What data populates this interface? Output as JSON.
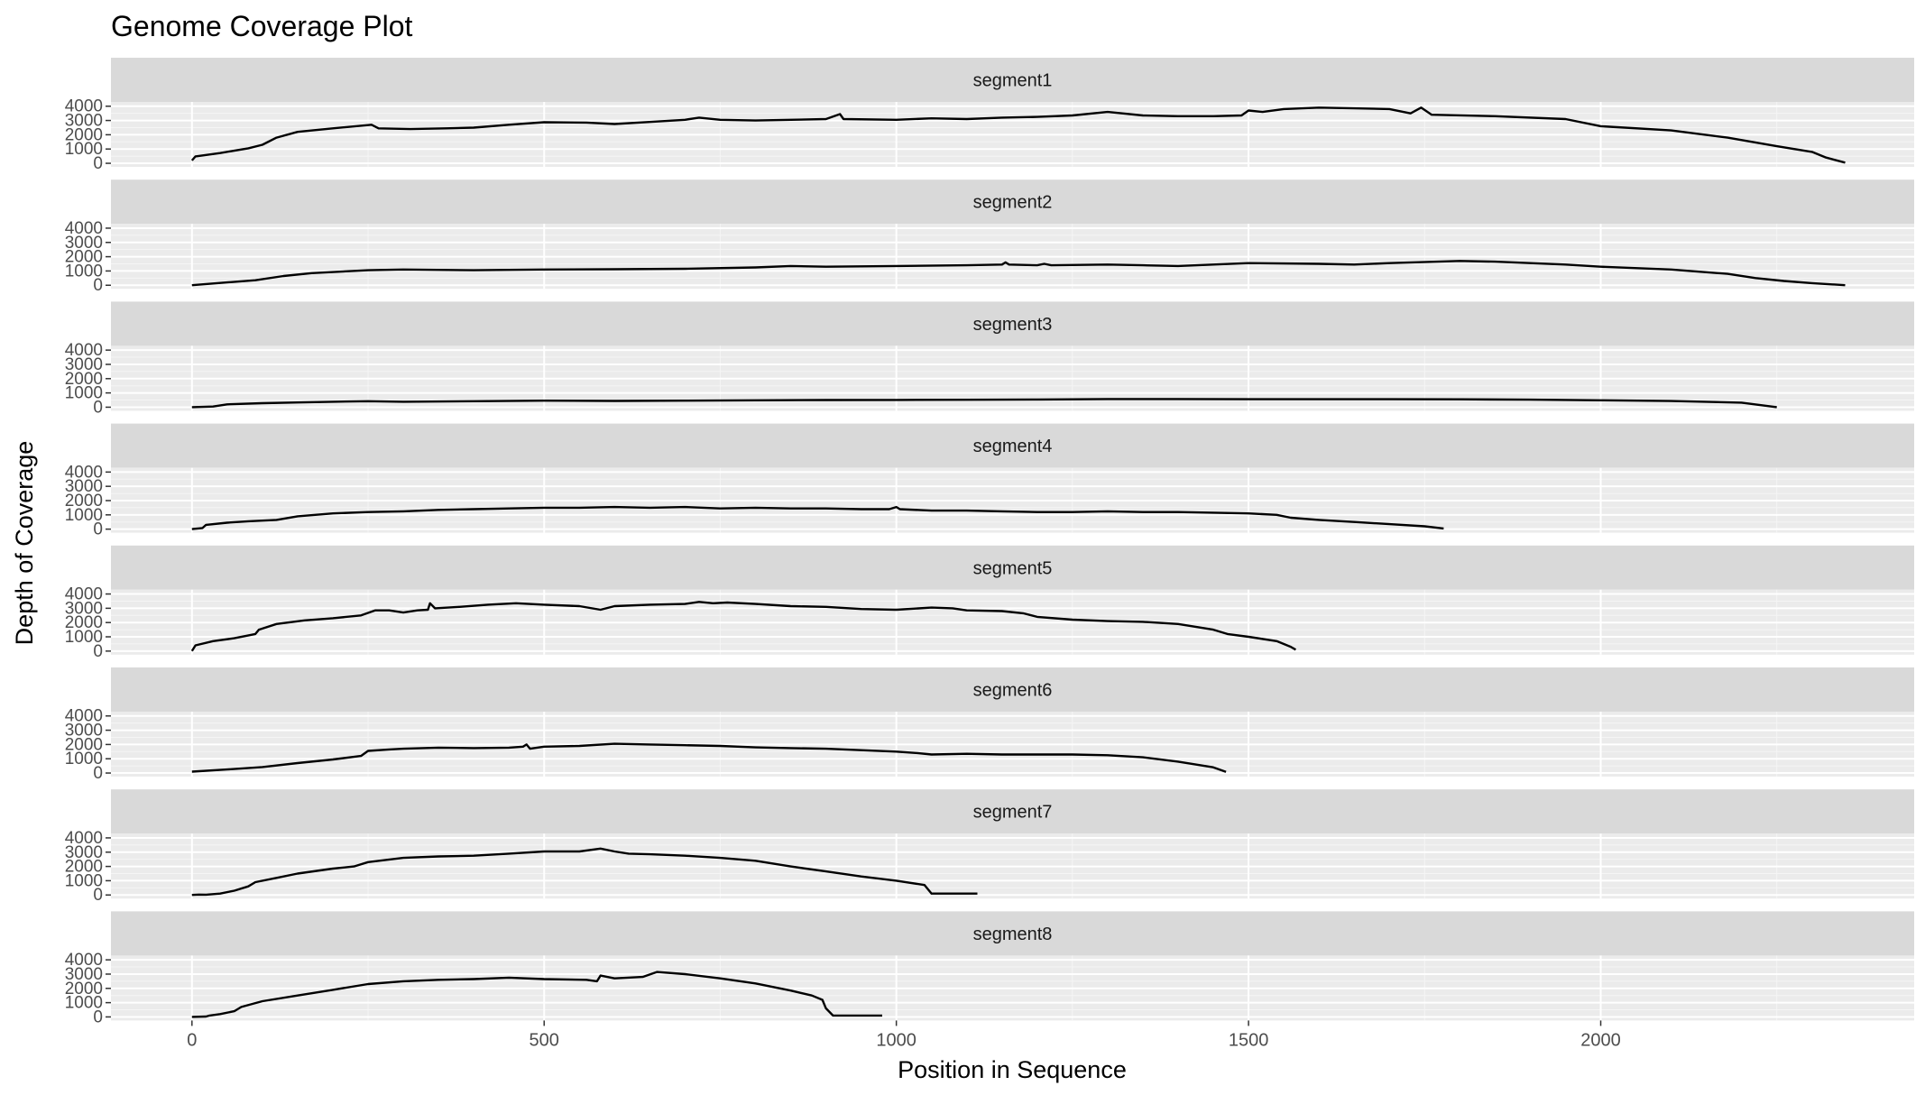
{
  "chart_data": {
    "type": "line",
    "title": "Genome Coverage Plot",
    "xlabel": "Position in Sequence",
    "ylabel": "Depth of Coverage",
    "xlim": [
      -115,
      2445
    ],
    "ylim": [
      -250,
      4300
    ],
    "x_ticks": [
      0,
      500,
      1000,
      1500,
      2000
    ],
    "x_minor_ticks": [
      250,
      750,
      1250,
      1750,
      2250
    ],
    "y_ticks": [
      0,
      1000,
      2000,
      3000,
      4000
    ],
    "y_minor_ticks": [
      500,
      1500,
      2500,
      3500
    ],
    "grid": true,
    "line_color": "#000000",
    "panel_background": "#ebebeb",
    "strip_background": "#d9d9d9",
    "facets": [
      {
        "label": "segment1",
        "points": [
          [
            0,
            200
          ],
          [
            5,
            480
          ],
          [
            40,
            720
          ],
          [
            80,
            1050
          ],
          [
            100,
            1300
          ],
          [
            120,
            1800
          ],
          [
            150,
            2200
          ],
          [
            200,
            2450
          ],
          [
            255,
            2700
          ],
          [
            265,
            2450
          ],
          [
            310,
            2400
          ],
          [
            360,
            2450
          ],
          [
            400,
            2500
          ],
          [
            450,
            2700
          ],
          [
            500,
            2880
          ],
          [
            560,
            2850
          ],
          [
            600,
            2750
          ],
          [
            650,
            2900
          ],
          [
            700,
            3050
          ],
          [
            720,
            3200
          ],
          [
            750,
            3050
          ],
          [
            800,
            3000
          ],
          [
            900,
            3100
          ],
          [
            920,
            3450
          ],
          [
            925,
            3100
          ],
          [
            1000,
            3050
          ],
          [
            1050,
            3150
          ],
          [
            1100,
            3100
          ],
          [
            1150,
            3200
          ],
          [
            1200,
            3250
          ],
          [
            1250,
            3350
          ],
          [
            1300,
            3600
          ],
          [
            1350,
            3350
          ],
          [
            1400,
            3300
          ],
          [
            1450,
            3300
          ],
          [
            1490,
            3350
          ],
          [
            1500,
            3700
          ],
          [
            1520,
            3600
          ],
          [
            1550,
            3800
          ],
          [
            1600,
            3900
          ],
          [
            1650,
            3850
          ],
          [
            1700,
            3800
          ],
          [
            1730,
            3500
          ],
          [
            1745,
            3900
          ],
          [
            1760,
            3400
          ],
          [
            1850,
            3300
          ],
          [
            1950,
            3100
          ],
          [
            2000,
            2600
          ],
          [
            2100,
            2300
          ],
          [
            2180,
            1800
          ],
          [
            2250,
            1200
          ],
          [
            2300,
            800
          ],
          [
            2320,
            400
          ],
          [
            2347,
            50
          ]
        ]
      },
      {
        "label": "segment2",
        "points": [
          [
            0,
            0
          ],
          [
            50,
            200
          ],
          [
            90,
            350
          ],
          [
            130,
            650
          ],
          [
            170,
            850
          ],
          [
            250,
            1050
          ],
          [
            300,
            1100
          ],
          [
            400,
            1050
          ],
          [
            500,
            1100
          ],
          [
            600,
            1120
          ],
          [
            700,
            1150
          ],
          [
            800,
            1250
          ],
          [
            850,
            1350
          ],
          [
            900,
            1300
          ],
          [
            1000,
            1350
          ],
          [
            1100,
            1400
          ],
          [
            1150,
            1450
          ],
          [
            1155,
            1600
          ],
          [
            1160,
            1450
          ],
          [
            1200,
            1400
          ],
          [
            1210,
            1500
          ],
          [
            1220,
            1400
          ],
          [
            1300,
            1450
          ],
          [
            1350,
            1400
          ],
          [
            1400,
            1350
          ],
          [
            1450,
            1450
          ],
          [
            1500,
            1550
          ],
          [
            1600,
            1500
          ],
          [
            1650,
            1450
          ],
          [
            1700,
            1550
          ],
          [
            1800,
            1700
          ],
          [
            1850,
            1650
          ],
          [
            1900,
            1550
          ],
          [
            1950,
            1450
          ],
          [
            2000,
            1300
          ],
          [
            2100,
            1100
          ],
          [
            2180,
            800
          ],
          [
            2220,
            500
          ],
          [
            2260,
            300
          ],
          [
            2300,
            150
          ],
          [
            2347,
            0
          ]
        ]
      },
      {
        "label": "segment3",
        "points": [
          [
            0,
            0
          ],
          [
            30,
            50
          ],
          [
            50,
            200
          ],
          [
            100,
            280
          ],
          [
            150,
            330
          ],
          [
            200,
            380
          ],
          [
            250,
            420
          ],
          [
            300,
            380
          ],
          [
            400,
            420
          ],
          [
            500,
            460
          ],
          [
            600,
            440
          ],
          [
            700,
            460
          ],
          [
            800,
            480
          ],
          [
            900,
            500
          ],
          [
            1000,
            510
          ],
          [
            1100,
            520
          ],
          [
            1200,
            540
          ],
          [
            1300,
            570
          ],
          [
            1400,
            570
          ],
          [
            1500,
            560
          ],
          [
            1600,
            560
          ],
          [
            1700,
            560
          ],
          [
            1800,
            550
          ],
          [
            1900,
            530
          ],
          [
            2000,
            480
          ],
          [
            2100,
            430
          ],
          [
            2200,
            320
          ],
          [
            2250,
            0
          ]
        ]
      },
      {
        "label": "segment4",
        "points": [
          [
            0,
            0
          ],
          [
            15,
            80
          ],
          [
            20,
            300
          ],
          [
            50,
            450
          ],
          [
            80,
            550
          ],
          [
            120,
            650
          ],
          [
            150,
            900
          ],
          [
            200,
            1100
          ],
          [
            250,
            1200
          ],
          [
            300,
            1250
          ],
          [
            350,
            1350
          ],
          [
            400,
            1400
          ],
          [
            450,
            1450
          ],
          [
            500,
            1500
          ],
          [
            550,
            1500
          ],
          [
            600,
            1550
          ],
          [
            650,
            1500
          ],
          [
            700,
            1550
          ],
          [
            750,
            1450
          ],
          [
            800,
            1500
          ],
          [
            850,
            1450
          ],
          [
            900,
            1450
          ],
          [
            950,
            1400
          ],
          [
            990,
            1400
          ],
          [
            1000,
            1550
          ],
          [
            1005,
            1400
          ],
          [
            1050,
            1300
          ],
          [
            1100,
            1300
          ],
          [
            1150,
            1250
          ],
          [
            1200,
            1200
          ],
          [
            1250,
            1200
          ],
          [
            1300,
            1250
          ],
          [
            1350,
            1200
          ],
          [
            1400,
            1200
          ],
          [
            1450,
            1150
          ],
          [
            1500,
            1100
          ],
          [
            1540,
            1000
          ],
          [
            1560,
            800
          ],
          [
            1600,
            650
          ],
          [
            1650,
            500
          ],
          [
            1700,
            350
          ],
          [
            1750,
            200
          ],
          [
            1777,
            50
          ]
        ]
      },
      {
        "label": "segment5",
        "points": [
          [
            0,
            0
          ],
          [
            5,
            400
          ],
          [
            30,
            700
          ],
          [
            60,
            900
          ],
          [
            90,
            1200
          ],
          [
            95,
            1500
          ],
          [
            120,
            1900
          ],
          [
            160,
            2150
          ],
          [
            200,
            2300
          ],
          [
            240,
            2500
          ],
          [
            260,
            2850
          ],
          [
            280,
            2850
          ],
          [
            300,
            2700
          ],
          [
            320,
            2850
          ],
          [
            335,
            2900
          ],
          [
            338,
            3350
          ],
          [
            345,
            3000
          ],
          [
            380,
            3100
          ],
          [
            420,
            3250
          ],
          [
            460,
            3350
          ],
          [
            500,
            3250
          ],
          [
            550,
            3150
          ],
          [
            580,
            2900
          ],
          [
            600,
            3150
          ],
          [
            650,
            3250
          ],
          [
            700,
            3300
          ],
          [
            720,
            3450
          ],
          [
            740,
            3350
          ],
          [
            760,
            3400
          ],
          [
            800,
            3300
          ],
          [
            850,
            3150
          ],
          [
            900,
            3100
          ],
          [
            950,
            2950
          ],
          [
            1000,
            2900
          ],
          [
            1050,
            3050
          ],
          [
            1080,
            3000
          ],
          [
            1100,
            2850
          ],
          [
            1150,
            2800
          ],
          [
            1180,
            2650
          ],
          [
            1200,
            2400
          ],
          [
            1250,
            2200
          ],
          [
            1300,
            2100
          ],
          [
            1350,
            2050
          ],
          [
            1400,
            1900
          ],
          [
            1450,
            1500
          ],
          [
            1470,
            1200
          ],
          [
            1500,
            1000
          ],
          [
            1540,
            700
          ],
          [
            1560,
            300
          ],
          [
            1567,
            100
          ]
        ]
      },
      {
        "label": "segment6",
        "points": [
          [
            0,
            100
          ],
          [
            50,
            250
          ],
          [
            100,
            420
          ],
          [
            150,
            700
          ],
          [
            200,
            950
          ],
          [
            240,
            1200
          ],
          [
            250,
            1550
          ],
          [
            280,
            1650
          ],
          [
            300,
            1700
          ],
          [
            350,
            1780
          ],
          [
            400,
            1750
          ],
          [
            450,
            1780
          ],
          [
            470,
            1850
          ],
          [
            475,
            2000
          ],
          [
            480,
            1700
          ],
          [
            500,
            1850
          ],
          [
            550,
            1900
          ],
          [
            600,
            2050
          ],
          [
            650,
            2000
          ],
          [
            700,
            1950
          ],
          [
            750,
            1900
          ],
          [
            800,
            1800
          ],
          [
            850,
            1750
          ],
          [
            900,
            1700
          ],
          [
            950,
            1600
          ],
          [
            1000,
            1500
          ],
          [
            1030,
            1400
          ],
          [
            1050,
            1300
          ],
          [
            1100,
            1350
          ],
          [
            1150,
            1300
          ],
          [
            1200,
            1300
          ],
          [
            1250,
            1300
          ],
          [
            1300,
            1250
          ],
          [
            1350,
            1100
          ],
          [
            1400,
            800
          ],
          [
            1450,
            400
          ],
          [
            1468,
            80
          ]
        ]
      },
      {
        "label": "segment7",
        "points": [
          [
            0,
            0
          ],
          [
            10,
            30
          ],
          [
            20,
            20
          ],
          [
            40,
            100
          ],
          [
            60,
            300
          ],
          [
            80,
            600
          ],
          [
            90,
            900
          ],
          [
            120,
            1200
          ],
          [
            150,
            1500
          ],
          [
            200,
            1850
          ],
          [
            230,
            2000
          ],
          [
            250,
            2300
          ],
          [
            300,
            2600
          ],
          [
            350,
            2700
          ],
          [
            400,
            2750
          ],
          [
            450,
            2900
          ],
          [
            500,
            3050
          ],
          [
            550,
            3050
          ],
          [
            580,
            3250
          ],
          [
            600,
            3050
          ],
          [
            620,
            2900
          ],
          [
            650,
            2850
          ],
          [
            700,
            2750
          ],
          [
            750,
            2600
          ],
          [
            800,
            2400
          ],
          [
            850,
            2000
          ],
          [
            900,
            1650
          ],
          [
            950,
            1300
          ],
          [
            1000,
            1000
          ],
          [
            1040,
            700
          ],
          [
            1050,
            100
          ],
          [
            1115,
            100
          ]
        ]
      },
      {
        "label": "segment8",
        "points": [
          [
            0,
            0
          ],
          [
            20,
            30
          ],
          [
            25,
            100
          ],
          [
            40,
            200
          ],
          [
            60,
            400
          ],
          [
            70,
            700
          ],
          [
            100,
            1100
          ],
          [
            150,
            1500
          ],
          [
            200,
            1900
          ],
          [
            250,
            2300
          ],
          [
            300,
            2500
          ],
          [
            350,
            2600
          ],
          [
            400,
            2650
          ],
          [
            450,
            2750
          ],
          [
            500,
            2650
          ],
          [
            560,
            2600
          ],
          [
            575,
            2500
          ],
          [
            580,
            2900
          ],
          [
            600,
            2700
          ],
          [
            640,
            2800
          ],
          [
            660,
            3150
          ],
          [
            700,
            3000
          ],
          [
            750,
            2700
          ],
          [
            800,
            2350
          ],
          [
            850,
            1850
          ],
          [
            880,
            1500
          ],
          [
            895,
            1200
          ],
          [
            900,
            600
          ],
          [
            910,
            100
          ],
          [
            980,
            100
          ]
        ]
      }
    ]
  }
}
